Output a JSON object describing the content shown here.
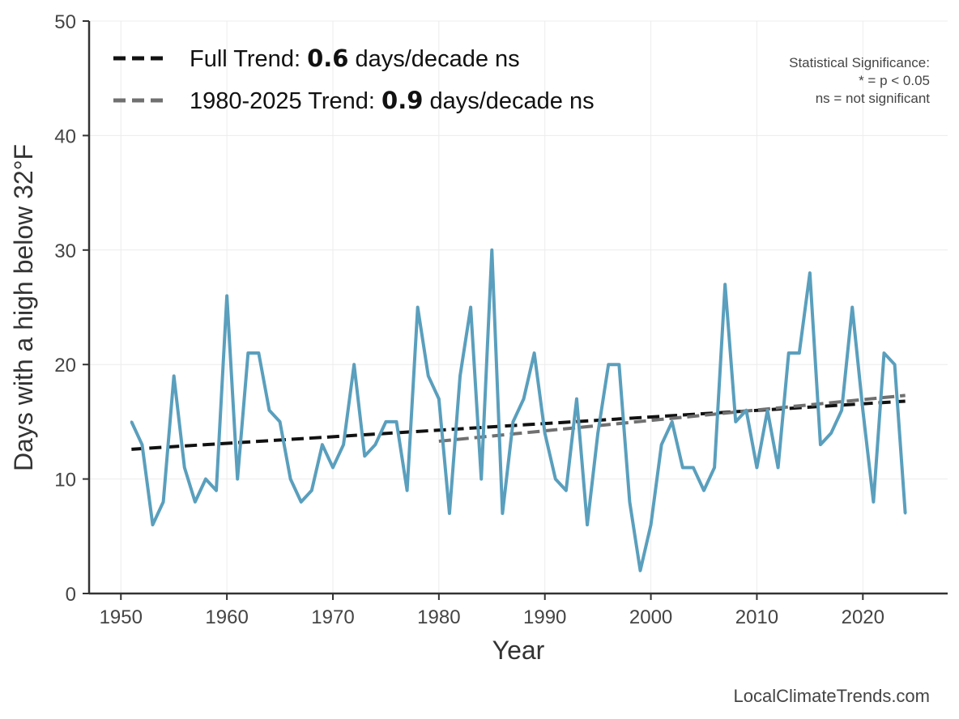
{
  "chart_data": {
    "type": "line",
    "xlabel": "Year",
    "ylabel": "Days with a high below 32°F",
    "xlim": [
      1947,
      2028
    ],
    "ylim": [
      0,
      50
    ],
    "x_ticks": [
      1950,
      1960,
      1970,
      1980,
      1990,
      2000,
      2010,
      2020
    ],
    "y_ticks": [
      0,
      10,
      20,
      30,
      40,
      50
    ],
    "grid": true,
    "colors": {
      "series": "#5a9fbd",
      "full_trend": "#111111",
      "recent_trend": "#707070"
    },
    "series": [
      {
        "x": [
          1951,
          1952,
          1953,
          1954,
          1955,
          1956,
          1957,
          1958,
          1959,
          1960,
          1961,
          1962,
          1963,
          1964,
          1965,
          1966,
          1967,
          1968,
          1969,
          1970,
          1971,
          1972,
          1973,
          1974,
          1975,
          1976,
          1977,
          1978,
          1979,
          1980,
          1981,
          1982,
          1983,
          1984,
          1985,
          1986,
          1987,
          1988,
          1989,
          1990,
          1991,
          1992,
          1993,
          1994,
          1995,
          1996,
          1997,
          1998,
          1999,
          2000,
          2001,
          2002,
          2003,
          2004,
          2005,
          2006,
          2007,
          2008,
          2009,
          2010,
          2011,
          2012,
          2013,
          2014,
          2015,
          2016,
          2017,
          2018,
          2019,
          2020,
          2021,
          2022,
          2023,
          2024
        ],
        "values": [
          15,
          13,
          6,
          8,
          19,
          11,
          8,
          10,
          9,
          26,
          10,
          21,
          21,
          16,
          15,
          10,
          8,
          9,
          13,
          11,
          13,
          20,
          12,
          13,
          15,
          15,
          9,
          25,
          19,
          17,
          7,
          19,
          25,
          10,
          30,
          7,
          15,
          17,
          21,
          14,
          10,
          9,
          17,
          6,
          14,
          20,
          20,
          8,
          2,
          6,
          13,
          15,
          11,
          11,
          9,
          11,
          27,
          15,
          16,
          11,
          16,
          11,
          21,
          21,
          28,
          13,
          14,
          16,
          25,
          16,
          8,
          21,
          20,
          7
        ]
      }
    ],
    "trends": [
      {
        "x_start": 1951,
        "y_start": 12.6,
        "x_end": 2024,
        "y_end": 16.8
      },
      {
        "x_start": 1980,
        "y_start": 13.3,
        "x_end": 2024,
        "y_end": 17.3
      }
    ],
    "legend": {
      "position": "top-left",
      "entries": [
        {
          "prefix": "Full Trend: ",
          "value": "0.6",
          "suffix": " days/decade ns"
        },
        {
          "prefix": "1980-2025 Trend: ",
          "value": "0.9",
          "suffix": " days/decade ns"
        }
      ]
    },
    "significance_note": [
      "Statistical Significance:",
      "* = p < 0.05",
      "ns = not significant"
    ],
    "credit": "LocalClimateTrends.com"
  }
}
